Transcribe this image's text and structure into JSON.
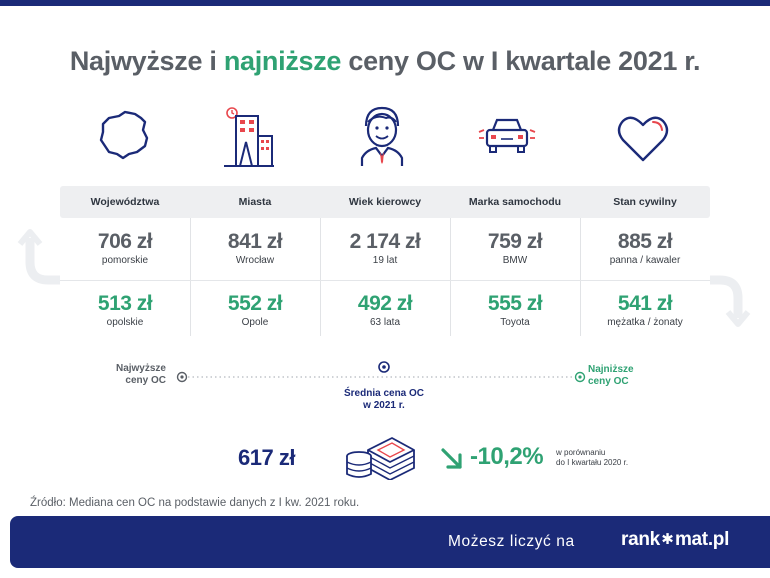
{
  "title": {
    "part1": "Najwyższe",
    "part2": " i ",
    "part3": "najniższe",
    "part4": " ceny OC w I kwartale 2021 r."
  },
  "icons": [
    "poland-map-icon",
    "city-buildings-icon",
    "driver-face-icon",
    "car-icon",
    "heart-icon"
  ],
  "columns": [
    {
      "header": "Województwa",
      "high_value": "706 zł",
      "high_label": "pomorskie",
      "low_value": "513 zł",
      "low_label": "opolskie"
    },
    {
      "header": "Miasta",
      "high_value": "841 zł",
      "high_label": "Wrocław",
      "low_value": "552 zł",
      "low_label": "Opole"
    },
    {
      "header": "Wiek kierowcy",
      "high_value": "2 174 zł",
      "high_label": "19 lat",
      "low_value": "492 zł",
      "low_label": "63 lata"
    },
    {
      "header": "Marka samochodu",
      "high_value": "759 zł",
      "high_label": "BMW",
      "low_value": "555 zł",
      "low_label": "Toyota"
    },
    {
      "header": "Stan cywilny",
      "high_value": "885 zł",
      "high_label": "panna / kawaler",
      "low_value": "541 zł",
      "low_label": "mężatka / żonaty"
    }
  ],
  "legend": {
    "highest_line1": "Najwyższe",
    "highest_line2": "ceny OC",
    "average_line1": "Średnia cena OC",
    "average_line2": "w 2021 r.",
    "lowest_line1": "Najniższe",
    "lowest_line2": "ceny OC"
  },
  "summary": {
    "average_price": "617 zł",
    "change": "-10,2%",
    "compare_line1": "w porównaniu",
    "compare_line2": "do I kwartału 2020 r."
  },
  "source": "Źródło: Mediana cen OC na podstawie danych z I kw. 2021 roku.",
  "footer": {
    "tagline": "Możesz liczyć na",
    "logo_part1": "rank",
    "logo_part2": "mat.pl"
  },
  "colors": {
    "navy": "#1b2a78",
    "green": "#2fa273",
    "gray": "#5a5f66",
    "red": "#e8474d"
  }
}
